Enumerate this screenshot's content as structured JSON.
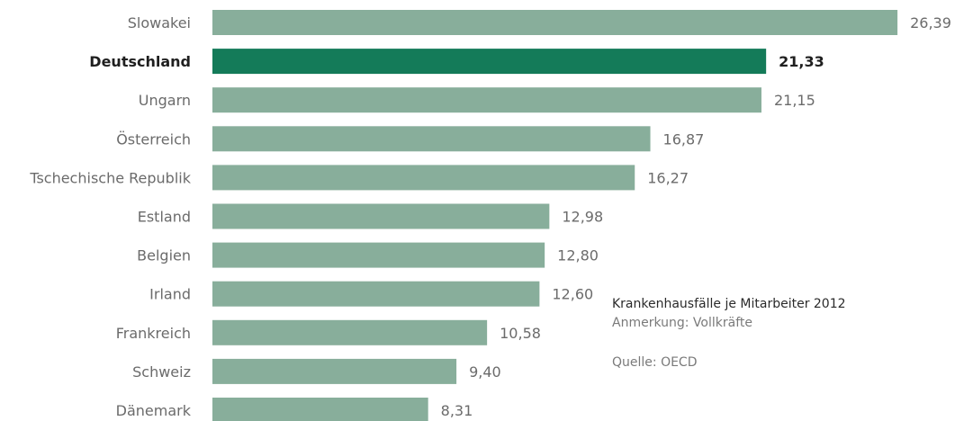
{
  "chart_data": {
    "type": "bar",
    "orientation": "horizontal",
    "categories": [
      "Slowakei",
      "Deutschland",
      "Ungarn",
      "Österreich",
      "Tschechische Republik",
      "Estland",
      "Belgien",
      "Irland",
      "Frankreich",
      "Schweiz",
      "Dänemark"
    ],
    "values": [
      26.39,
      21.33,
      21.15,
      16.87,
      16.27,
      12.98,
      12.8,
      12.6,
      10.58,
      9.4,
      8.31
    ],
    "value_labels": [
      "26,39",
      "21,33",
      "21,15",
      "16,87",
      "16,27",
      "12,98",
      "12,80",
      "12,60",
      "10,58",
      "9,40",
      "8,31"
    ],
    "highlight": "Deutschland",
    "grid": false,
    "colors": {
      "bar": "#88ae9b",
      "highlight": "#147b59"
    }
  },
  "annotation": {
    "title": "Krankenhausfälle je Mitarbeiter 2012",
    "note": "Anmerkung: Vollkräfte",
    "source": "Quelle: OECD"
  }
}
